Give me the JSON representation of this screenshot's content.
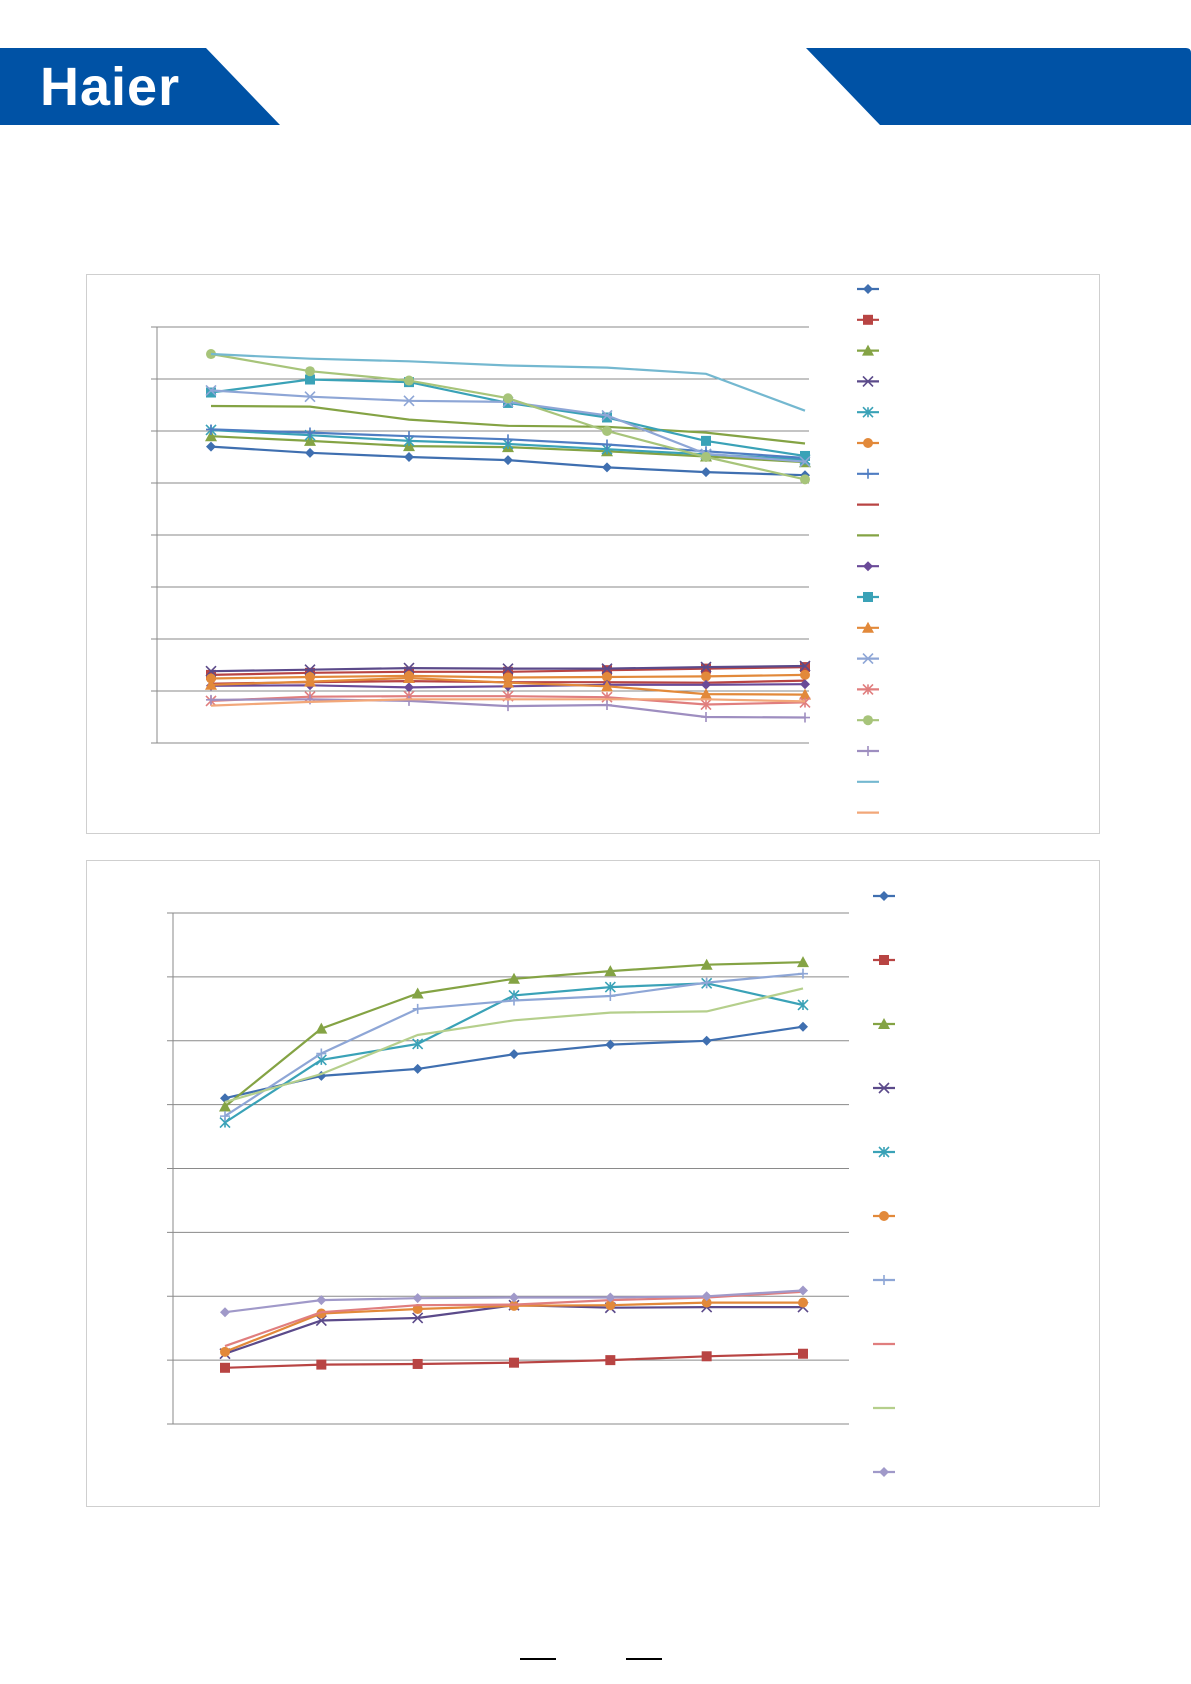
{
  "brand": {
    "logo_text": "Haier",
    "color": "#0052a5"
  },
  "chart_data": [
    {
      "type": "line",
      "x": [
        1,
        2,
        3,
        4,
        5,
        6,
        7
      ],
      "ylim": [
        0,
        8
      ],
      "grid": true,
      "legend_position": "right",
      "series": [
        {
          "color": "#3f6fb0",
          "marker": "diamond",
          "values": [
            5.7,
            5.58,
            5.5,
            5.44,
            5.3,
            5.21,
            5.15
          ]
        },
        {
          "color": "#b84443",
          "marker": "square",
          "values": [
            1.31,
            1.35,
            1.37,
            1.37,
            1.4,
            1.43,
            1.46
          ]
        },
        {
          "color": "#84a344",
          "marker": "triangle",
          "values": [
            5.9,
            5.81,
            5.71,
            5.69,
            5.61,
            5.51,
            5.4
          ]
        },
        {
          "color": "#5b4a8a",
          "marker": "x",
          "values": [
            1.38,
            1.41,
            1.44,
            1.43,
            1.43,
            1.46,
            1.48
          ]
        },
        {
          "color": "#3aa2b7",
          "marker": "star",
          "values": [
            6.02,
            5.92,
            5.81,
            5.75,
            5.65,
            5.55,
            5.45
          ]
        },
        {
          "color": "#e2893a",
          "marker": "circle",
          "values": [
            1.24,
            1.27,
            1.29,
            1.26,
            1.27,
            1.28,
            1.31
          ]
        },
        {
          "color": "#4f7dc2",
          "marker": "plus",
          "values": [
            6.03,
            5.97,
            5.9,
            5.84,
            5.74,
            5.61,
            5.48
          ]
        },
        {
          "color": "#b84443",
          "marker": "none",
          "values": [
            1.14,
            1.17,
            1.19,
            1.17,
            1.17,
            1.16,
            1.2
          ]
        },
        {
          "color": "#84a344",
          "marker": "none",
          "values": [
            6.48,
            6.47,
            6.22,
            6.1,
            6.08,
            5.97,
            5.76
          ]
        },
        {
          "color": "#6a4a98",
          "marker": "diamond",
          "values": [
            1.1,
            1.11,
            1.07,
            1.09,
            1.12,
            1.12,
            1.13
          ]
        },
        {
          "color": "#3aa2b7",
          "marker": "square",
          "values": [
            6.74,
            6.99,
            6.94,
            6.54,
            6.26,
            5.81,
            5.52
          ]
        },
        {
          "color": "#e2893a",
          "marker": "triangle",
          "values": [
            1.12,
            1.18,
            1.25,
            1.16,
            1.09,
            0.94,
            0.93
          ]
        },
        {
          "color": "#8ea6d6",
          "marker": "x",
          "values": [
            6.78,
            6.66,
            6.58,
            6.56,
            6.3,
            5.56,
            5.41
          ]
        },
        {
          "color": "#e07e7e",
          "marker": "star",
          "values": [
            0.81,
            0.89,
            0.9,
            0.9,
            0.88,
            0.74,
            0.78
          ]
        },
        {
          "color": "#a7c47a",
          "marker": "circle",
          "values": [
            7.48,
            7.15,
            6.97,
            6.63,
            6.0,
            5.5,
            5.07
          ]
        },
        {
          "color": "#9e8ec0",
          "marker": "plus",
          "values": [
            0.83,
            0.84,
            0.81,
            0.71,
            0.73,
            0.5,
            0.49
          ]
        },
        {
          "color": "#74b8d0",
          "marker": "none",
          "values": [
            7.48,
            7.39,
            7.34,
            7.26,
            7.22,
            7.1,
            6.39
          ]
        },
        {
          "color": "#f2a779",
          "marker": "none",
          "values": [
            0.72,
            0.79,
            0.84,
            0.84,
            0.84,
            0.84,
            0.8
          ]
        }
      ]
    },
    {
      "type": "line",
      "x": [
        1,
        2,
        3,
        4,
        5,
        6,
        7
      ],
      "ylim": [
        0,
        8
      ],
      "grid": true,
      "legend_position": "right",
      "series": [
        {
          "color": "#3f6fb0",
          "marker": "diamond",
          "values": [
            5.1,
            5.45,
            5.56,
            5.79,
            5.94,
            6.0,
            6.22
          ]
        },
        {
          "color": "#b84443",
          "marker": "square",
          "values": [
            0.88,
            0.93,
            0.94,
            0.96,
            1.0,
            1.06,
            1.1
          ]
        },
        {
          "color": "#84a344",
          "marker": "triangle",
          "values": [
            4.97,
            6.19,
            6.74,
            6.97,
            7.09,
            7.19,
            7.23
          ]
        },
        {
          "color": "#5b4a8a",
          "marker": "x",
          "values": [
            1.1,
            1.62,
            1.66,
            1.86,
            1.82,
            1.83,
            1.83
          ]
        },
        {
          "color": "#3aa2b7",
          "marker": "star",
          "values": [
            4.72,
            5.7,
            5.95,
            6.71,
            6.84,
            6.9,
            6.56
          ]
        },
        {
          "color": "#e2893a",
          "marker": "circle",
          "values": [
            1.13,
            1.73,
            1.8,
            1.85,
            1.86,
            1.9,
            1.9
          ]
        },
        {
          "color": "#8ea6d6",
          "marker": "plus",
          "values": [
            4.82,
            5.8,
            6.5,
            6.63,
            6.7,
            6.91,
            7.05
          ]
        },
        {
          "color": "#e07e7e",
          "marker": "none",
          "values": [
            1.22,
            1.75,
            1.86,
            1.87,
            1.94,
            1.98,
            2.07
          ]
        },
        {
          "color": "#b5cf8c",
          "marker": "none",
          "values": [
            5.04,
            5.48,
            6.09,
            6.32,
            6.44,
            6.46,
            6.82
          ]
        },
        {
          "color": "#a099c9",
          "marker": "diamond",
          "values": [
            1.75,
            1.94,
            1.97,
            1.98,
            1.98,
            2.0,
            2.09
          ]
        }
      ]
    }
  ]
}
